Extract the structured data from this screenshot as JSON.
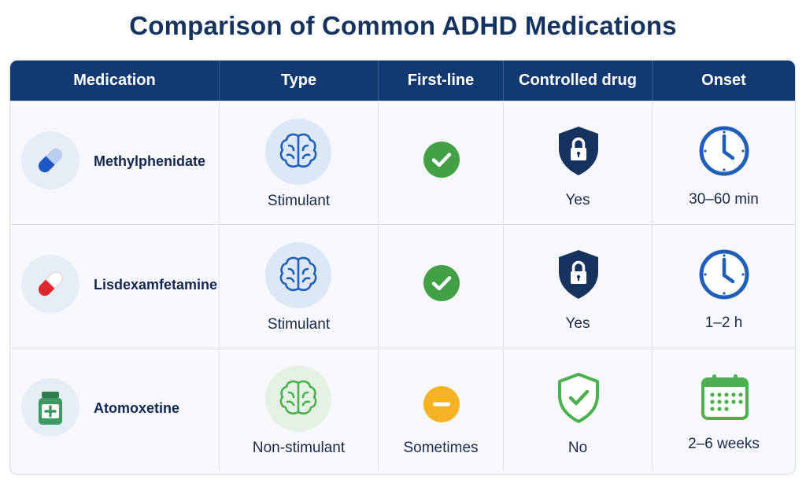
{
  "title": "Comparison of Common ADHD Medications",
  "header": {
    "medication": "Medication",
    "type": "Type",
    "first_line": "First-line",
    "controlled": "Controlled drug",
    "onset": "Onset"
  },
  "rows": [
    {
      "medication": "Methylphenidate",
      "pill_icon": "blue-capsule-icon",
      "type": "Stimulant",
      "type_icon": "brain-icon",
      "first_line_icon": "check-icon",
      "first_line": "",
      "controlled": "Yes",
      "controlled_icon": "shield-lock-icon",
      "onset": "30–60 min",
      "onset_icon": "clock-icon"
    },
    {
      "medication": "Lisdexamfetamine",
      "pill_icon": "red-capsule-icon",
      "type": "Stimulant",
      "type_icon": "brain-icon",
      "first_line_icon": "check-icon",
      "first_line": "",
      "controlled": "Yes",
      "controlled_icon": "shield-lock-icon",
      "onset": "1–2 h",
      "onset_icon": "clock-icon"
    },
    {
      "medication": "Atomoxetine",
      "pill_icon": "medicine-bottle-icon",
      "type": "Non-stimulant",
      "type_icon": "brain-icon",
      "first_line_icon": "minus-icon",
      "first_line": "Sometimes",
      "controlled": "No",
      "controlled_icon": "shield-check-icon",
      "onset": "2–6 weeks",
      "onset_icon": "calendar-icon"
    }
  ],
  "colors": {
    "header_bg": "#123a70",
    "title": "#16325f",
    "check_green": "#43a047",
    "minus_yellow": "#f5b324",
    "shield_navy": "#16325f",
    "shield_green": "#4caf50",
    "clock_blue": "#1f5fb8",
    "calendar_green": "#4caf50"
  }
}
